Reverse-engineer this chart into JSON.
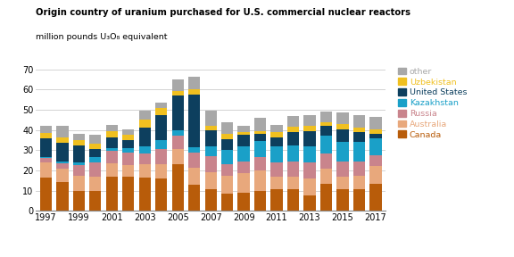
{
  "years": [
    1997,
    1998,
    1999,
    2000,
    2001,
    2002,
    2003,
    2004,
    2005,
    2006,
    2007,
    2008,
    2009,
    2010,
    2011,
    2012,
    2013,
    2014,
    2015,
    2016,
    2017
  ],
  "Canada": [
    16.5,
    14.0,
    10.0,
    10.0,
    17.0,
    17.0,
    16.5,
    16.0,
    23.0,
    13.0,
    10.5,
    8.5,
    9.0,
    10.0,
    10.5,
    10.5,
    7.5,
    13.5,
    10.5,
    10.5,
    13.5
  ],
  "Australia": [
    7.5,
    7.0,
    7.5,
    7.0,
    6.5,
    5.5,
    6.5,
    7.0,
    7.5,
    8.5,
    8.5,
    9.0,
    9.5,
    10.0,
    6.5,
    6.5,
    8.5,
    7.5,
    6.5,
    7.0,
    8.5
  ],
  "Russia": [
    2.0,
    2.5,
    5.0,
    7.0,
    6.0,
    6.5,
    5.5,
    7.5,
    6.5,
    7.5,
    8.0,
    5.5,
    6.0,
    6.5,
    7.0,
    7.5,
    8.0,
    7.5,
    7.5,
    7.0,
    5.5
  ],
  "Kazakhstan": [
    0.5,
    1.0,
    1.5,
    2.5,
    1.5,
    2.0,
    3.5,
    4.5,
    3.0,
    2.5,
    5.0,
    7.0,
    7.5,
    8.0,
    8.0,
    8.0,
    8.0,
    8.5,
    9.5,
    9.5,
    8.5
  ],
  "United States": [
    9.5,
    9.0,
    8.5,
    4.0,
    5.5,
    4.0,
    9.0,
    12.5,
    17.0,
    26.0,
    8.0,
    5.5,
    5.5,
    3.5,
    4.5,
    6.5,
    7.5,
    5.0,
    6.5,
    5.0,
    2.0
  ],
  "Uzbekistan": [
    2.5,
    3.0,
    2.5,
    2.5,
    3.0,
    2.5,
    4.0,
    3.5,
    2.5,
    2.5,
    2.0,
    2.5,
    1.5,
    1.5,
    2.5,
    2.5,
    2.5,
    2.0,
    2.5,
    2.0,
    2.5
  ],
  "other": [
    3.5,
    5.5,
    3.0,
    4.5,
    3.0,
    3.0,
    4.5,
    2.5,
    5.5,
    6.5,
    7.5,
    6.0,
    3.0,
    6.5,
    3.5,
    5.5,
    5.5,
    5.0,
    5.5,
    6.5,
    6.0
  ],
  "colors": {
    "Canada": "#b85c0a",
    "Australia": "#e8a87c",
    "Russia": "#c9848c",
    "Kazakhstan": "#1aa0c8",
    "United States": "#0d3f5e",
    "Uzbekistan": "#f0c020",
    "other": "#a8a8a8"
  },
  "title_line1": "Origin country of uranium purchased for U.S. commercial nuclear reactors",
  "title_line2": "million pounds U₃O₈ equivalent",
  "ylim": [
    0,
    70
  ],
  "yticks": [
    0,
    10,
    20,
    30,
    40,
    50,
    60,
    70
  ],
  "stack_order": [
    "Canada",
    "Australia",
    "Russia",
    "Kazakhstan",
    "United States",
    "Uzbekistan",
    "other"
  ],
  "legend_order": [
    "other",
    "Uzbekistan",
    "United States",
    "Kazakhstan",
    "Russia",
    "Australia",
    "Canada"
  ],
  "legend_colors": {
    "other": "#a8a8a8",
    "Uzbekistan": "#f0c020",
    "United States": "#0d3f5e",
    "Kazakhstan": "#1aa0c8",
    "Russia": "#c9848c",
    "Australia": "#e8a87c",
    "Canada": "#b85c0a"
  }
}
